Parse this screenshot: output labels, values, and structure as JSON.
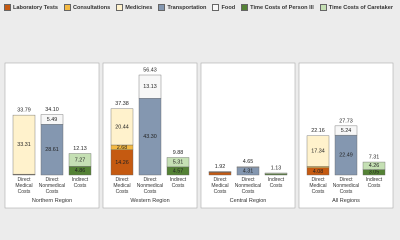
{
  "chart_data": {
    "type": "stacked-bar",
    "groups": [
      "Northern Region",
      "Western Region",
      "Central Region",
      "All Regions"
    ],
    "categories": [
      "Direct Medical Costs",
      "Direct Nonmedical Costs",
      "Indirect Costs",
      "Direct Medical Costs",
      "Direct Nonmedical Costs",
      "Indirect Costs",
      "Direct Medical Costs",
      "Direct Nonmedical Costs",
      "Indirect Costs",
      "Direct Medical Costs",
      "Direct Nonmedical Costs",
      "Indirect Costs"
    ],
    "series": [
      {
        "name": "Laboratory Tests",
        "color": "#c55a11",
        "values": [
          0.22,
          null,
          null,
          14.26,
          null,
          null,
          1.5,
          null,
          null,
          4.08,
          null,
          null
        ],
        "value_labels": [
          null,
          null,
          null,
          "14.26",
          null,
          null,
          null,
          null,
          null,
          "4.08",
          null,
          null
        ]
      },
      {
        "name": "Consultations",
        "color": "#f4b942",
        "values": [
          0.26,
          null,
          null,
          2.68,
          null,
          null,
          0.22,
          null,
          null,
          0.74,
          null,
          null
        ],
        "value_labels": [
          null,
          null,
          null,
          "2.68",
          null,
          null,
          null,
          null,
          null,
          null,
          null,
          null
        ]
      },
      {
        "name": "Medicines",
        "color": "#fff2cc",
        "values": [
          33.31,
          null,
          null,
          20.44,
          null,
          null,
          0.2,
          null,
          null,
          17.34,
          null,
          null
        ],
        "value_labels": [
          "33.31",
          null,
          null,
          "20.44",
          null,
          null,
          null,
          null,
          null,
          "17.34",
          null,
          null
        ]
      },
      {
        "name": "Transportation",
        "color": "#8497b0",
        "values": [
          null,
          28.61,
          null,
          null,
          43.3,
          null,
          null,
          4.31,
          null,
          null,
          22.49,
          null
        ],
        "value_labels": [
          null,
          "28.61",
          null,
          null,
          "43.30",
          null,
          null,
          "4.31",
          null,
          null,
          "22.49",
          null
        ]
      },
      {
        "name": "Food",
        "color": "#f7f7f7",
        "values": [
          null,
          5.49,
          null,
          null,
          13.13,
          null,
          null,
          0.34,
          null,
          null,
          5.24,
          null
        ],
        "value_labels": [
          null,
          "5.49",
          null,
          null,
          "13.13",
          null,
          null,
          null,
          null,
          null,
          "5.24",
          null
        ]
      },
      {
        "name": "Time Costs of Person Ill",
        "color": "#548235",
        "values": [
          null,
          null,
          4.86,
          null,
          null,
          4.57,
          null,
          null,
          0.6,
          null,
          null,
          3.05
        ],
        "value_labels": [
          null,
          null,
          "4.86",
          null,
          null,
          "4.57",
          null,
          null,
          null,
          null,
          null,
          "3.05"
        ]
      },
      {
        "name": "Time Costs of Caretaker",
        "color": "#c5e0b4",
        "values": [
          null,
          null,
          7.27,
          null,
          null,
          5.31,
          null,
          null,
          0.53,
          null,
          null,
          4.26
        ],
        "value_labels": [
          null,
          null,
          "7.27",
          null,
          null,
          "5.31",
          null,
          null,
          null,
          null,
          null,
          "4.26"
        ]
      }
    ],
    "totals": [
      {
        "value": 33.79,
        "label": "33.79"
      },
      {
        "value": 34.1,
        "label": "34.10"
      },
      {
        "value": 12.13,
        "label": "12.13"
      },
      {
        "value": 37.38,
        "label": "37.38"
      },
      {
        "value": 56.43,
        "label": "56.43"
      },
      {
        "value": 9.88,
        "label": "9.88"
      },
      {
        "value": 1.92,
        "label": "1.92"
      },
      {
        "value": 4.65,
        "label": "4.65"
      },
      {
        "value": 1.13,
        "label": "1.13"
      },
      {
        "value": 22.16,
        "label": "22.16"
      },
      {
        "value": 27.73,
        "label": "27.73"
      },
      {
        "value": 7.31,
        "label": "7.31"
      }
    ]
  }
}
